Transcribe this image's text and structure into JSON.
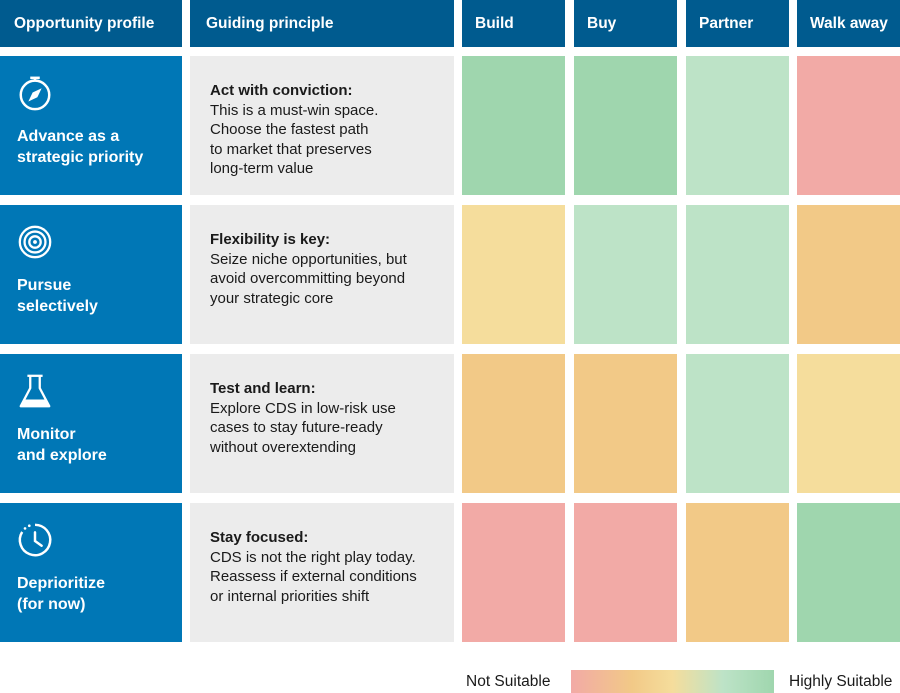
{
  "chart_data": {
    "type": "heatmap",
    "header": {
      "profile": "Opportunity profile",
      "principle": "Guiding principle"
    },
    "columns": [
      "Build",
      "Buy",
      "Partner",
      "Walk away"
    ],
    "rows": [
      {
        "profile": "Advance as a\nstrategic priority",
        "icon": "compass-icon",
        "principle_title": "Act with conviction:",
        "principle_body": "This is a must-win space.\nChoose the fastest path\nto market that preserves\nlong-term value",
        "values": [
          1.0,
          1.0,
          0.8,
          0.0
        ]
      },
      {
        "profile": "Pursue\nselectively",
        "icon": "target-icon",
        "principle_title": "Flexibility is key:",
        "principle_body": "Seize niche opportunities, but\navoid overcommitting beyond\nyour strategic core",
        "values": [
          0.5,
          0.8,
          0.8,
          0.3
        ]
      },
      {
        "profile": "Monitor\nand explore",
        "icon": "flask-icon",
        "principle_title": "Test and learn:",
        "principle_body": "Explore CDS in low-risk use\ncases to stay future-ready\nwithout overextending",
        "values": [
          0.3,
          0.3,
          0.8,
          0.5
        ]
      },
      {
        "profile": "Deprioritize\n(for now)",
        "icon": "clock-icon",
        "principle_title": "Stay focused:",
        "principle_body": "CDS is not the right play today.\nReassess if external conditions\nor internal priorities shift",
        "values": [
          0.0,
          0.0,
          0.3,
          1.0
        ]
      }
    ],
    "scale": {
      "low_label": "Not Suitable",
      "high_label": "Highly Suitable",
      "colors": [
        "#f2aaa6",
        "#f2c987",
        "#f5dd9c",
        "#bde3c7",
        "#9fd6ae"
      ]
    }
  }
}
